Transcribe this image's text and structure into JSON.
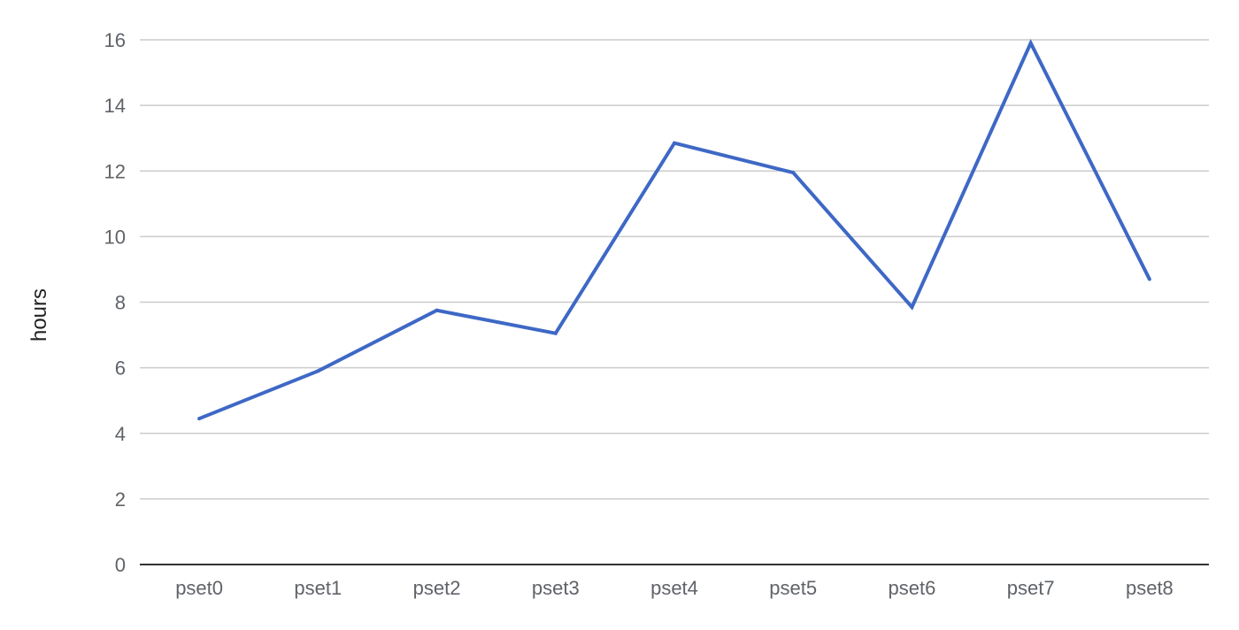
{
  "chart_data": {
    "type": "line",
    "title": "",
    "xlabel": "",
    "ylabel": "hours",
    "categories": [
      "pset0",
      "pset1",
      "pset2",
      "pset3",
      "pset4",
      "pset5",
      "pset6",
      "pset7",
      "pset8"
    ],
    "series": [
      {
        "values": [
          4.45,
          5.9,
          7.75,
          7.05,
          12.85,
          11.95,
          7.85,
          15.9,
          8.7
        ]
      }
    ],
    "ylim": [
      0,
      16
    ],
    "yticks": [
      0,
      2,
      4,
      6,
      8,
      10,
      12,
      14,
      16
    ],
    "grid": true,
    "legend": "none",
    "colors": {
      "line": "#3e68c6",
      "grid": "#cccccc",
      "baseline": "#333333"
    }
  }
}
